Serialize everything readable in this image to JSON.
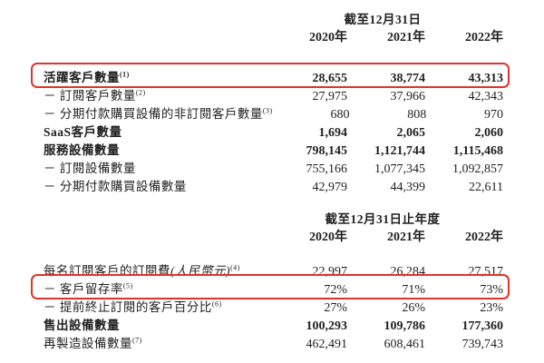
{
  "page": {
    "background": "#ffffff",
    "text_color": "#1f1f1f",
    "highlight_border_color": "#e0332a"
  },
  "table1": {
    "period_header": "截至12月31日",
    "years": [
      "2020年",
      "2021年",
      "2022年"
    ],
    "rows": [
      {
        "label": "活躍客戶數量",
        "sup": "(1)",
        "values": [
          "28,655",
          "38,774",
          "43,313"
        ],
        "bold": true,
        "highlighted": true
      },
      {
        "label": "－ 訂閱客戶數量",
        "sup": "(2)",
        "values": [
          "27,975",
          "37,966",
          "42,343"
        ]
      },
      {
        "label": "－ 分期付款購買設備的非訂閱客戶數量",
        "sup": "(3)",
        "values": [
          "680",
          "808",
          "970"
        ]
      },
      {
        "label": "SaaS客戶數量",
        "values": [
          "1,694",
          "2,065",
          "2,060"
        ],
        "bold": true
      },
      {
        "label": "服務設備數量",
        "values": [
          "798,145",
          "1,121,744",
          "1,115,468"
        ],
        "bold": true
      },
      {
        "label": "－ 訂閱設備數量",
        "values": [
          "755,166",
          "1,077,345",
          "1,092,857"
        ]
      },
      {
        "label": "－ 分期付款購買設備數量",
        "values": [
          "42,979",
          "44,399",
          "22,611"
        ]
      }
    ]
  },
  "table2": {
    "period_header": "截至12月31日止年度",
    "years": [
      "2020年",
      "2021年",
      "2022年"
    ],
    "rows": [
      {
        "label": "每名訂閱客戶的訂閱費",
        "label_italic": "(人民幣元)",
        "sup": "(4)",
        "values": [
          "22,997",
          "26,284",
          "27,517"
        ]
      },
      {
        "label": "－ 客戶留存率",
        "sup": "(5)",
        "values": [
          "72%",
          "71%",
          "73%"
        ],
        "highlighted": true
      },
      {
        "label": "－ 提前終止訂閱的客戶百分比",
        "sup": "(6)",
        "values": [
          "27%",
          "26%",
          "23%"
        ]
      },
      {
        "label": "售出設備數量",
        "values": [
          "100,293",
          "109,786",
          "177,360"
        ],
        "bold": true
      },
      {
        "label": "再製造設備數量",
        "sup": "(7)",
        "values": [
          "462,491",
          "608,461",
          "739,743"
        ]
      }
    ]
  }
}
